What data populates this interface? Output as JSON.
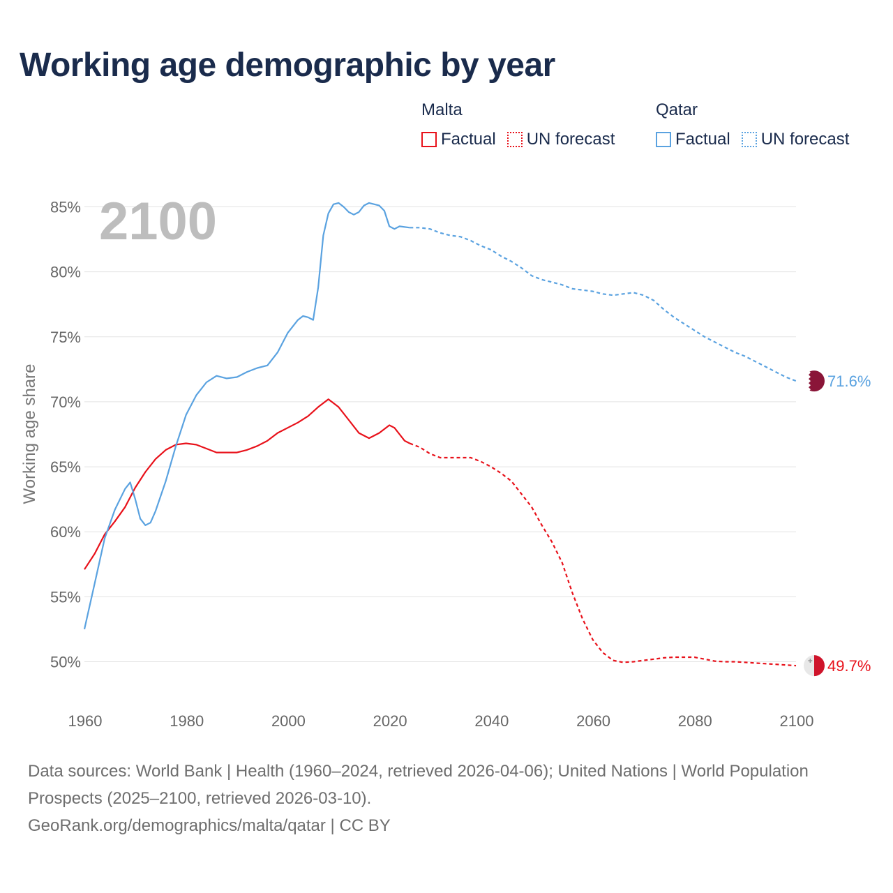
{
  "title": "Working age demographic by year",
  "legend": {
    "groups": [
      {
        "name": "Malta",
        "color": "#e8111a",
        "factual_label": "Factual",
        "forecast_label": "UN forecast"
      },
      {
        "name": "Qatar",
        "color": "#5aa2e0",
        "factual_label": "Factual",
        "forecast_label": "UN forecast"
      }
    ]
  },
  "year_overlay": "2100",
  "footer": {
    "line1": "Data sources: World Bank | Health (1960–2024, retrieved 2026-04-06); United Nations | World Population Prospects (2025–2100, retrieved 2026-03-10).",
    "line2": "GeoRank.org/demographics/malta/qatar | CC BY"
  },
  "chart_data": {
    "type": "line",
    "title": "Working age demographic by year",
    "xlabel": "",
    "ylabel": "Working age share",
    "xlim": [
      1960,
      2100
    ],
    "ylim": [
      48,
      86
    ],
    "x_ticks": [
      1960,
      1980,
      2000,
      2020,
      2040,
      2060,
      2080,
      2100
    ],
    "y_ticks": [
      50,
      55,
      60,
      65,
      70,
      75,
      80,
      85
    ],
    "y_tick_labels": [
      "50%",
      "55%",
      "60%",
      "65%",
      "70%",
      "75%",
      "80%",
      "85%"
    ],
    "x_tick_labels": [
      "1960",
      "1980",
      "2000",
      "2020",
      "2040",
      "2060",
      "2080",
      "2100"
    ],
    "grid": true,
    "factual_end_year": 2024,
    "series": [
      {
        "name": "Malta",
        "color": "#e8111a",
        "end_label": "49.7%",
        "points": [
          [
            1960,
            57.1
          ],
          [
            1962,
            58.3
          ],
          [
            1964,
            59.8
          ],
          [
            1966,
            60.8
          ],
          [
            1968,
            61.9
          ],
          [
            1970,
            63.4
          ],
          [
            1972,
            64.6
          ],
          [
            1974,
            65.6
          ],
          [
            1976,
            66.3
          ],
          [
            1978,
            66.7
          ],
          [
            1980,
            66.8
          ],
          [
            1982,
            66.7
          ],
          [
            1984,
            66.4
          ],
          [
            1986,
            66.1
          ],
          [
            1988,
            66.1
          ],
          [
            1990,
            66.1
          ],
          [
            1992,
            66.3
          ],
          [
            1994,
            66.6
          ],
          [
            1996,
            67.0
          ],
          [
            1998,
            67.6
          ],
          [
            2000,
            68.0
          ],
          [
            2002,
            68.4
          ],
          [
            2004,
            68.9
          ],
          [
            2006,
            69.6
          ],
          [
            2008,
            70.2
          ],
          [
            2010,
            69.6
          ],
          [
            2012,
            68.6
          ],
          [
            2014,
            67.6
          ],
          [
            2016,
            67.2
          ],
          [
            2018,
            67.6
          ],
          [
            2020,
            68.2
          ],
          [
            2021,
            68.0
          ],
          [
            2022,
            67.5
          ],
          [
            2023,
            67.0
          ],
          [
            2024,
            66.8
          ],
          [
            2026,
            66.5
          ],
          [
            2028,
            66.0
          ],
          [
            2030,
            65.7
          ],
          [
            2032,
            65.7
          ],
          [
            2034,
            65.7
          ],
          [
            2036,
            65.7
          ],
          [
            2038,
            65.4
          ],
          [
            2040,
            65.0
          ],
          [
            2042,
            64.5
          ],
          [
            2044,
            63.9
          ],
          [
            2046,
            62.9
          ],
          [
            2048,
            61.9
          ],
          [
            2050,
            60.5
          ],
          [
            2052,
            59.2
          ],
          [
            2054,
            57.6
          ],
          [
            2056,
            55.3
          ],
          [
            2058,
            53.3
          ],
          [
            2060,
            51.7
          ],
          [
            2062,
            50.7
          ],
          [
            2064,
            50.1
          ],
          [
            2066,
            49.95
          ],
          [
            2068,
            50.0
          ],
          [
            2070,
            50.1
          ],
          [
            2072,
            50.2
          ],
          [
            2074,
            50.3
          ],
          [
            2076,
            50.35
          ],
          [
            2078,
            50.35
          ],
          [
            2080,
            50.35
          ],
          [
            2082,
            50.2
          ],
          [
            2084,
            50.05
          ],
          [
            2086,
            50.0
          ],
          [
            2088,
            50.0
          ],
          [
            2090,
            49.95
          ],
          [
            2092,
            49.9
          ],
          [
            2094,
            49.85
          ],
          [
            2096,
            49.8
          ],
          [
            2098,
            49.75
          ],
          [
            2100,
            49.7
          ]
        ]
      },
      {
        "name": "Qatar",
        "color": "#5aa2e0",
        "end_label": "71.6%",
        "points": [
          [
            1960,
            52.5
          ],
          [
            1962,
            56.0
          ],
          [
            1964,
            59.5
          ],
          [
            1966,
            61.7
          ],
          [
            1968,
            63.3
          ],
          [
            1969,
            63.8
          ],
          [
            1970,
            62.5
          ],
          [
            1971,
            61.0
          ],
          [
            1972,
            60.5
          ],
          [
            1973,
            60.7
          ],
          [
            1974,
            61.6
          ],
          [
            1976,
            63.9
          ],
          [
            1978,
            66.6
          ],
          [
            1980,
            69.0
          ],
          [
            1982,
            70.5
          ],
          [
            1984,
            71.5
          ],
          [
            1986,
            72.0
          ],
          [
            1988,
            71.8
          ],
          [
            1990,
            71.9
          ],
          [
            1992,
            72.3
          ],
          [
            1994,
            72.6
          ],
          [
            1996,
            72.8
          ],
          [
            1998,
            73.8
          ],
          [
            2000,
            75.3
          ],
          [
            2002,
            76.3
          ],
          [
            2003,
            76.6
          ],
          [
            2004,
            76.5
          ],
          [
            2005,
            76.3
          ],
          [
            2006,
            78.8
          ],
          [
            2007,
            82.8
          ],
          [
            2008,
            84.5
          ],
          [
            2009,
            85.2
          ],
          [
            2010,
            85.3
          ],
          [
            2011,
            85.0
          ],
          [
            2012,
            84.6
          ],
          [
            2013,
            84.4
          ],
          [
            2014,
            84.6
          ],
          [
            2015,
            85.1
          ],
          [
            2016,
            85.3
          ],
          [
            2018,
            85.1
          ],
          [
            2019,
            84.7
          ],
          [
            2020,
            83.5
          ],
          [
            2021,
            83.3
          ],
          [
            2022,
            83.5
          ],
          [
            2024,
            83.4
          ],
          [
            2026,
            83.4
          ],
          [
            2028,
            83.3
          ],
          [
            2030,
            83.0
          ],
          [
            2032,
            82.8
          ],
          [
            2034,
            82.7
          ],
          [
            2036,
            82.4
          ],
          [
            2038,
            82.0
          ],
          [
            2040,
            81.7
          ],
          [
            2042,
            81.2
          ],
          [
            2044,
            80.8
          ],
          [
            2046,
            80.3
          ],
          [
            2048,
            79.7
          ],
          [
            2050,
            79.4
          ],
          [
            2052,
            79.2
          ],
          [
            2054,
            79.0
          ],
          [
            2056,
            78.7
          ],
          [
            2058,
            78.6
          ],
          [
            2060,
            78.5
          ],
          [
            2062,
            78.3
          ],
          [
            2064,
            78.2
          ],
          [
            2066,
            78.3
          ],
          [
            2068,
            78.4
          ],
          [
            2070,
            78.2
          ],
          [
            2072,
            77.8
          ],
          [
            2074,
            77.1
          ],
          [
            2076,
            76.5
          ],
          [
            2078,
            76.0
          ],
          [
            2080,
            75.5
          ],
          [
            2082,
            75.0
          ],
          [
            2084,
            74.6
          ],
          [
            2086,
            74.2
          ],
          [
            2088,
            73.8
          ],
          [
            2090,
            73.5
          ],
          [
            2092,
            73.1
          ],
          [
            2094,
            72.7
          ],
          [
            2096,
            72.3
          ],
          [
            2098,
            71.9
          ],
          [
            2100,
            71.6
          ]
        ]
      }
    ]
  }
}
